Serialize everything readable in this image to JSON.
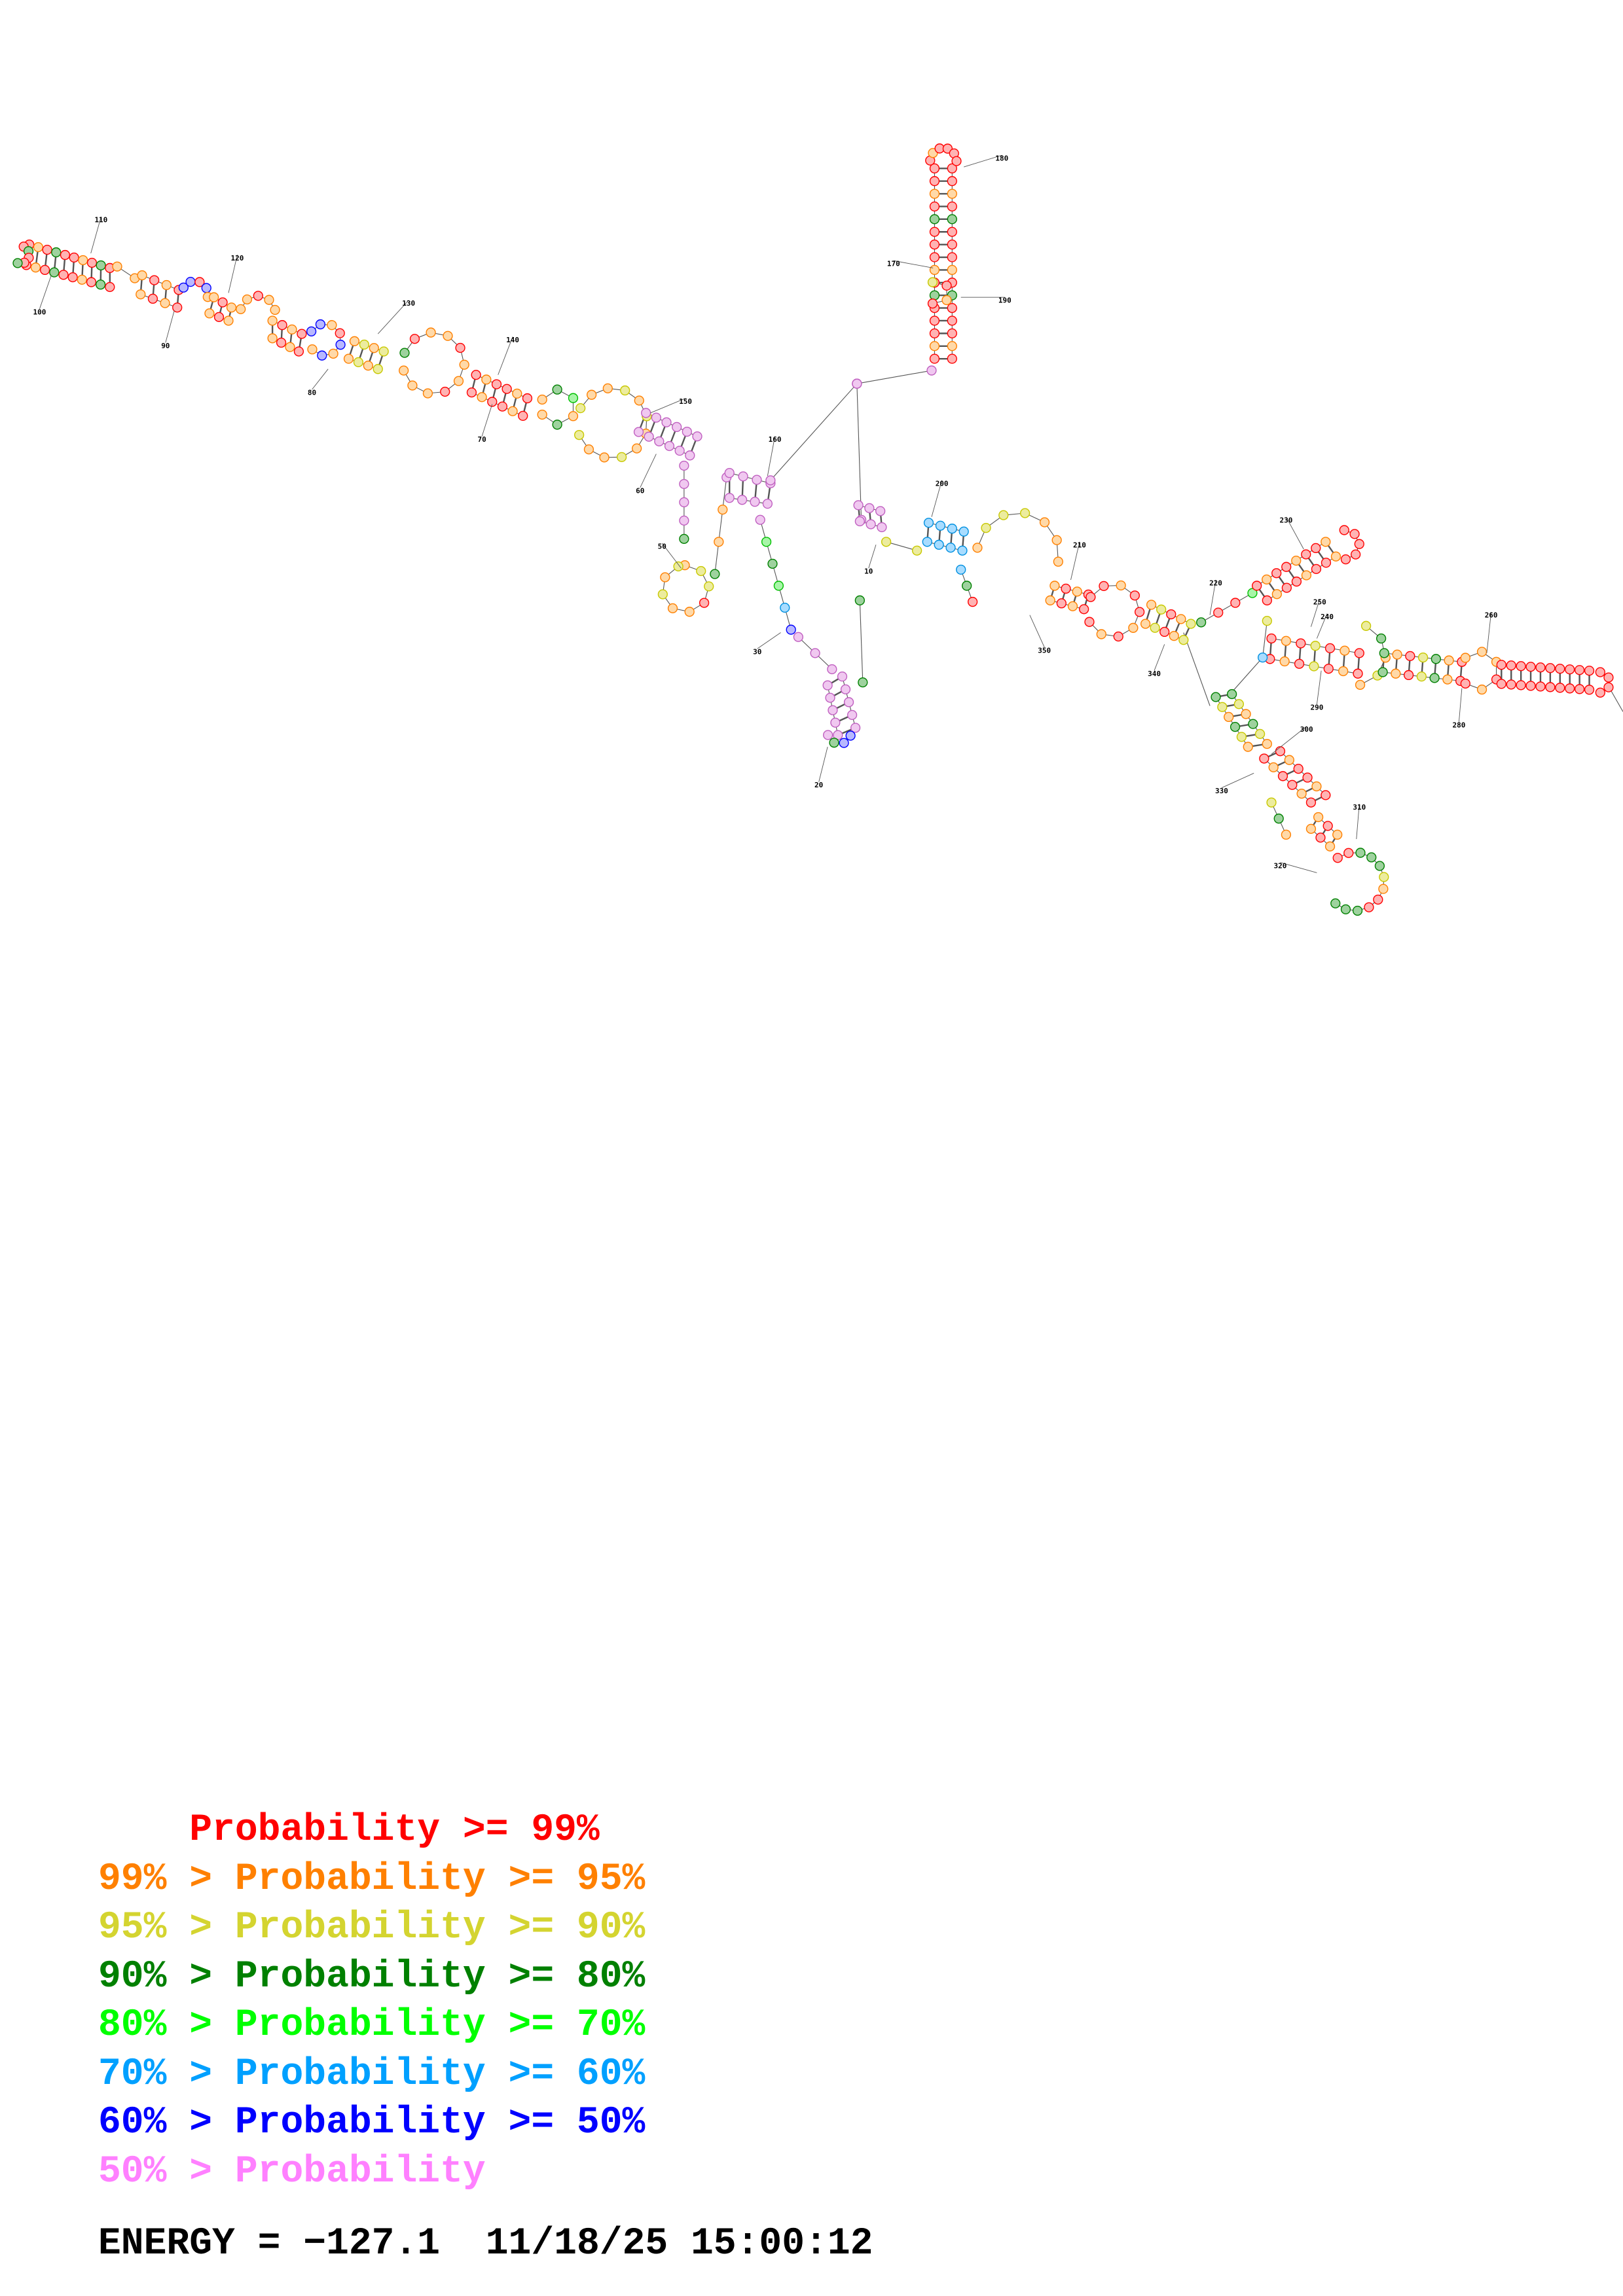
{
  "legend": [
    {
      "prefix": "    ",
      "text": "Probability >= 99%",
      "color": "#ff0000"
    },
    {
      "prefix": "99% > ",
      "text": "Probability >= 95%",
      "color": "#ff8000"
    },
    {
      "prefix": "95% > ",
      "text": "Probability >= 90%",
      "color": "#d4d430"
    },
    {
      "prefix": "90% > ",
      "text": "Probability >= 80%",
      "color": "#008000"
    },
    {
      "prefix": "80% > ",
      "text": "Probability >= 70%",
      "color": "#00ff00"
    },
    {
      "prefix": "70% > ",
      "text": "Probability >= 60%",
      "color": "#00a0ff"
    },
    {
      "prefix": "60% > ",
      "text": "Probability >= 50%",
      "color": "#0000ff"
    },
    {
      "prefix": "50% > ",
      "text": "Probability",
      "color": "#ff80ff"
    }
  ],
  "energy_label": "ENERGY = ",
  "energy_value": "−127.1",
  "timestamp": "11/18/25 15:00:12",
  "structure": {
    "tick_labels": [
      "10",
      "20",
      "30",
      "50",
      "60",
      "70",
      "80",
      "90",
      "100",
      "110",
      "120",
      "130",
      "140",
      "150",
      "160",
      "170",
      "180",
      "190",
      "200",
      "210",
      "220",
      "230",
      "240",
      "250",
      "260",
      "280",
      "290",
      "300",
      "310",
      "320",
      "330",
      "340",
      "350"
    ],
    "fill_colors": {
      "p99": "#ffb3b3",
      "p95": "#ffd9a8",
      "p90": "#ecec9e",
      "p80": "#9ed29e",
      "p70": "#a8f5a8",
      "p60": "#a8dcff",
      "p50": "#b8b8ff",
      "plow": "#f0c8f0"
    },
    "stroke_colors": {
      "p99": "#ff0000",
      "p95": "#ff8000",
      "p90": "#c8c800",
      "p80": "#008000",
      "p70": "#00c000",
      "p60": "#0090e0",
      "p50": "#0000ff",
      "plow": "#c060c0"
    }
  }
}
